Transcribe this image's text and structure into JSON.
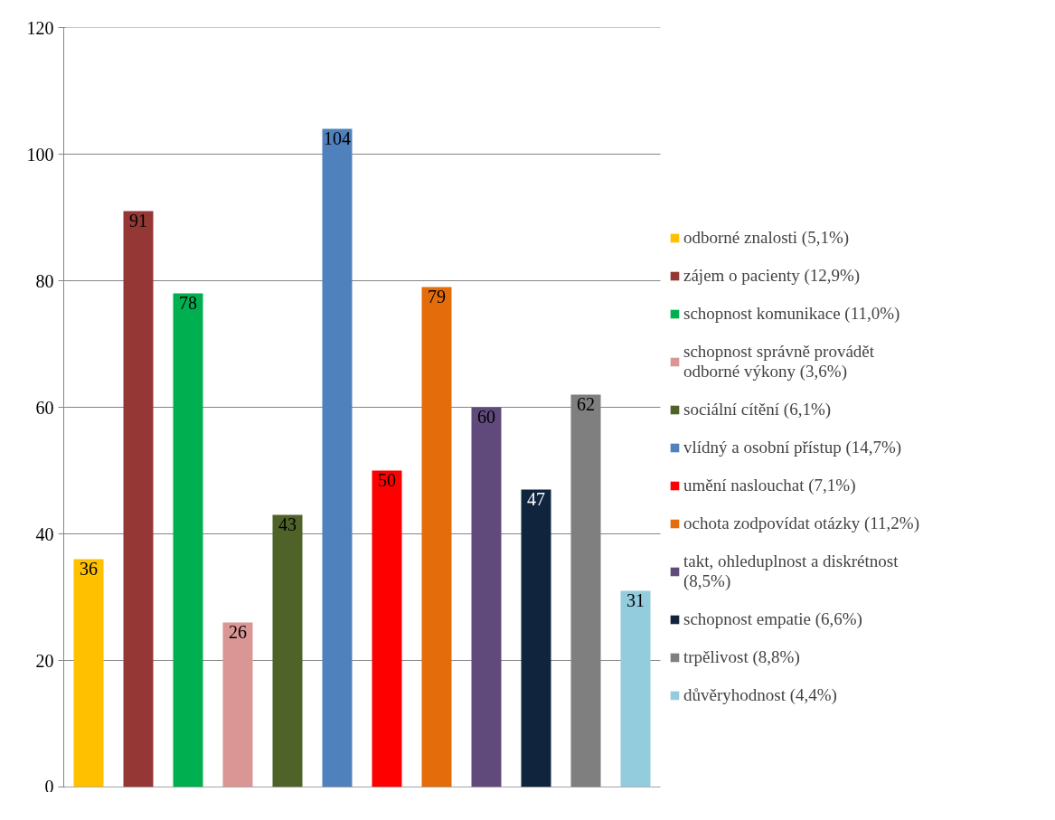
{
  "chart_data": {
    "type": "bar",
    "categories": [
      null,
      null,
      null,
      null,
      null,
      null,
      null,
      null,
      null,
      null,
      null,
      null
    ],
    "series": [
      {
        "name": "odborné znalosti (5,1%)",
        "color": "#ffc000",
        "values": [
          36,
          null,
          null,
          null,
          null,
          null,
          null,
          null,
          null,
          null,
          null,
          null
        ]
      },
      {
        "name": "zájem o pacienty (12,9%)",
        "color": "#953735",
        "values": [
          null,
          91,
          null,
          null,
          null,
          null,
          null,
          null,
          null,
          null,
          null,
          null
        ]
      },
      {
        "name": "schopnost komunikace (11,0%)",
        "color": "#00b050",
        "values": [
          null,
          null,
          78,
          null,
          null,
          null,
          null,
          null,
          null,
          null,
          null,
          null
        ]
      },
      {
        "name": "schopnost správně provádět odborné výkony (3,6%)",
        "color": "#d99694",
        "values": [
          null,
          null,
          null,
          26,
          null,
          null,
          null,
          null,
          null,
          null,
          null,
          null
        ]
      },
      {
        "name": "sociální cítění (6,1%)",
        "color": "#4f6228",
        "values": [
          null,
          null,
          null,
          null,
          43,
          null,
          null,
          null,
          null,
          null,
          null,
          null
        ]
      },
      {
        "name": "vlídný a osobní přístup (14,7%)",
        "color": "#4f81bd",
        "values": [
          null,
          null,
          null,
          null,
          null,
          104,
          null,
          null,
          null,
          null,
          null,
          null
        ]
      },
      {
        "name": "umění naslouchat (7,1%)",
        "color": "#ff0000",
        "values": [
          null,
          null,
          null,
          null,
          null,
          null,
          50,
          null,
          null,
          null,
          null,
          null
        ]
      },
      {
        "name": "ochota zodpovídat otázky (11,2%)",
        "color": "#e46c0a",
        "values": [
          null,
          null,
          null,
          null,
          null,
          null,
          null,
          79,
          null,
          null,
          null,
          null
        ]
      },
      {
        "name": "takt, ohleduplnost a diskrétnost (8,5%)",
        "color": "#604a7b",
        "values": [
          null,
          null,
          null,
          null,
          null,
          null,
          null,
          null,
          60,
          null,
          null,
          null
        ]
      },
      {
        "name": "schopnost empatie (6,6%)",
        "color": "#10243e",
        "values": [
          null,
          null,
          null,
          null,
          null,
          null,
          null,
          null,
          null,
          47,
          null,
          null
        ]
      },
      {
        "name": "trpělivost (8,8%)",
        "color": "#7f7f7f",
        "values": [
          null,
          null,
          null,
          null,
          null,
          null,
          null,
          null,
          null,
          null,
          62,
          null
        ]
      },
      {
        "name": "důvěryhodnost (4,4%)",
        "color": "#93cddd",
        "values": [
          null,
          null,
          null,
          null,
          null,
          null,
          null,
          null,
          null,
          null,
          null,
          31
        ]
      }
    ],
    "ylim": [
      0,
      120
    ],
    "yticks": [
      0,
      20,
      40,
      60,
      80,
      100,
      120
    ],
    "grid": "y",
    "legend": "right",
    "data_labels": true
  }
}
